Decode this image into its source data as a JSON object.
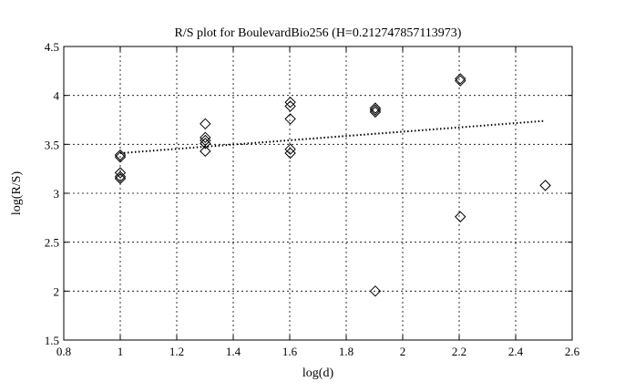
{
  "chart_data": {
    "type": "scatter",
    "title": "R/S plot for BoulevardBio256 (H=0.212747857113973)",
    "xlabel": "log(d)",
    "ylabel": "log(R/S)",
    "xlim": [
      0.8,
      2.6
    ],
    "ylim": [
      1.5,
      4.5
    ],
    "xticks": [
      "0.8",
      "1",
      "1.2",
      "1.4",
      "1.6",
      "1.8",
      "2",
      "2.2",
      "2.4",
      "2.6"
    ],
    "yticks": [
      "1.5",
      "2",
      "2.5",
      "3",
      "3.5",
      "4",
      "4.5"
    ],
    "grid": true,
    "marker": "diamond",
    "points": [
      {
        "x": 1.0,
        "y": 3.39
      },
      {
        "x": 1.0,
        "y": 3.37
      },
      {
        "x": 1.0,
        "y": 3.21
      },
      {
        "x": 1.0,
        "y": 3.17
      },
      {
        "x": 1.0,
        "y": 3.15
      },
      {
        "x": 1.301,
        "y": 3.71
      },
      {
        "x": 1.301,
        "y": 3.57
      },
      {
        "x": 1.301,
        "y": 3.54
      },
      {
        "x": 1.301,
        "y": 3.51
      },
      {
        "x": 1.301,
        "y": 3.43
      },
      {
        "x": 1.602,
        "y": 3.93
      },
      {
        "x": 1.602,
        "y": 3.89
      },
      {
        "x": 1.602,
        "y": 3.76
      },
      {
        "x": 1.602,
        "y": 3.45
      },
      {
        "x": 1.602,
        "y": 3.41
      },
      {
        "x": 1.903,
        "y": 3.87
      },
      {
        "x": 1.903,
        "y": 3.85
      },
      {
        "x": 1.903,
        "y": 3.83
      },
      {
        "x": 1.903,
        "y": 2.0
      },
      {
        "x": 2.204,
        "y": 4.17
      },
      {
        "x": 2.204,
        "y": 4.15
      },
      {
        "x": 2.204,
        "y": 2.76
      },
      {
        "x": 2.505,
        "y": 3.08
      }
    ],
    "fit_line": {
      "x": [
        1.0,
        2.505
      ],
      "y": [
        3.41,
        3.74
      ],
      "style": "dotted"
    }
  }
}
